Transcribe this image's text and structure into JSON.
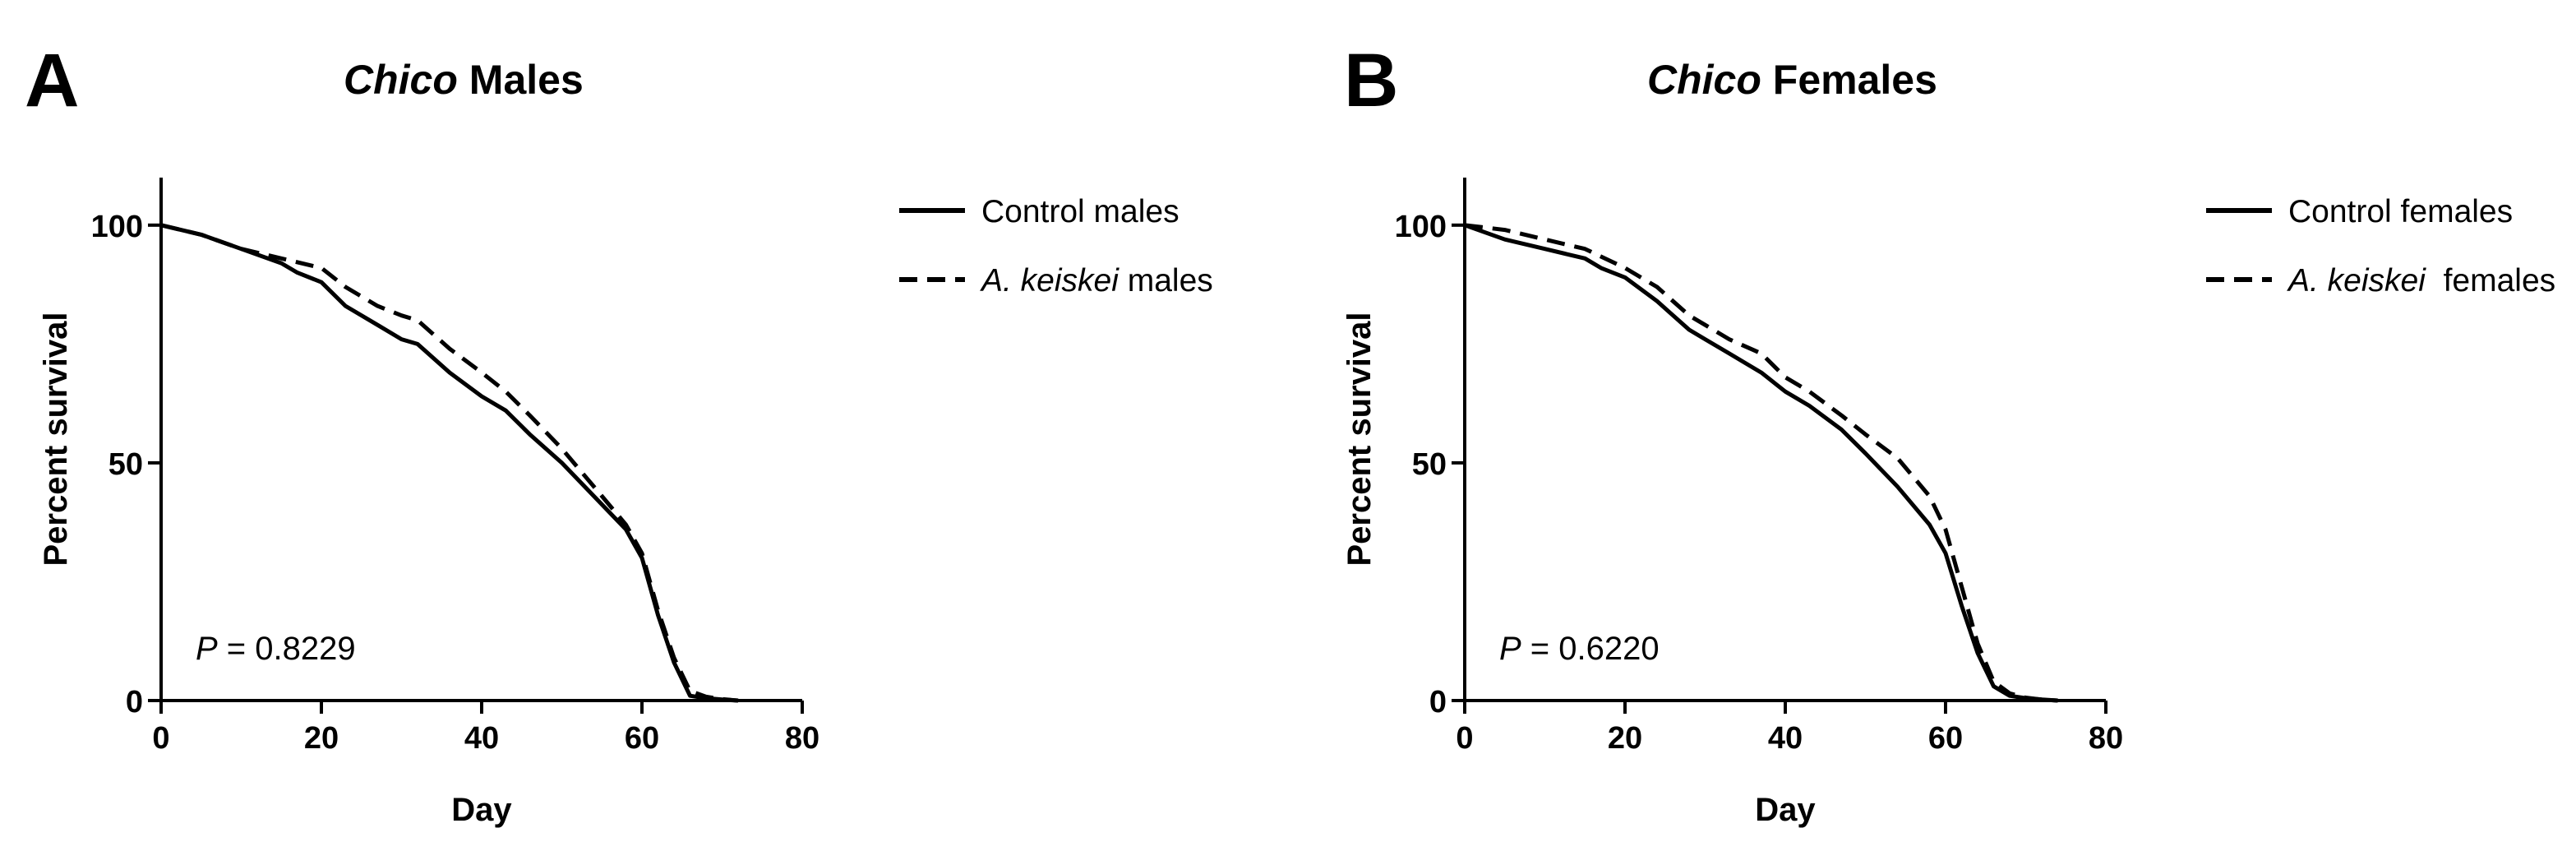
{
  "chart_data": [
    {
      "type": "line",
      "panel_label": "A",
      "title_italic": "Chico",
      "title_rest": " Males",
      "xlabel": "Day",
      "ylabel": "Percent survival",
      "xlim": [
        0,
        80
      ],
      "ylim": [
        0,
        110
      ],
      "xticks": [
        "0",
        "20",
        "40",
        "60",
        "80"
      ],
      "yticks": [
        "0",
        "50",
        "100"
      ],
      "annotation": {
        "italic": "P",
        "text": " = 0.8229"
      },
      "series": [
        {
          "name": "Control males",
          "name_italic": "",
          "name_rest": "Control males",
          "style": "solid",
          "x": [
            0,
            5,
            10,
            15,
            17,
            20,
            23,
            27,
            30,
            32,
            36,
            40,
            43,
            46,
            50,
            54,
            58,
            60,
            62,
            64,
            66,
            68,
            70,
            72
          ],
          "y": [
            100,
            98,
            95,
            92,
            90,
            88,
            83,
            79,
            76,
            75,
            69,
            64,
            61,
            56,
            50,
            43,
            36,
            30,
            18,
            8,
            1,
            0.5,
            0.2,
            0
          ]
        },
        {
          "name": "A. keiskei males",
          "name_italic": "A. keiskei",
          "name_rest": " males",
          "style": "dashed",
          "x": [
            0,
            5,
            10,
            15,
            20,
            23,
            27,
            30,
            32,
            36,
            40,
            43,
            46,
            50,
            54,
            58,
            60,
            62,
            64,
            66,
            68,
            70,
            72
          ],
          "y": [
            100,
            98,
            95,
            93,
            91,
            87,
            83,
            81,
            80,
            74,
            69,
            65,
            60,
            53,
            45,
            37,
            31,
            19,
            9,
            2,
            0.8,
            0.3,
            0
          ]
        }
      ]
    },
    {
      "type": "line",
      "panel_label": "B",
      "title_italic": "Chico",
      "title_rest": " Females",
      "xlabel": "Day",
      "ylabel": "Percent survival",
      "xlim": [
        0,
        80
      ],
      "ylim": [
        0,
        110
      ],
      "xticks": [
        "0",
        "20",
        "40",
        "60",
        "80"
      ],
      "yticks": [
        "0",
        "50",
        "100"
      ],
      "annotation": {
        "italic": "P",
        "text": " = 0.6220"
      },
      "series": [
        {
          "name": "Control females",
          "name_italic": "",
          "name_rest": "Control females",
          "style": "solid",
          "x": [
            0,
            5,
            10,
            15,
            17,
            20,
            24,
            28,
            30,
            33,
            37,
            40,
            43,
            47,
            50,
            54,
            58,
            60,
            62,
            64,
            66,
            68,
            70,
            72,
            74
          ],
          "y": [
            100,
            97,
            95,
            93,
            91,
            89,
            84,
            78,
            76,
            73,
            69,
            65,
            62,
            57,
            52,
            45,
            37,
            31,
            20,
            10,
            3,
            1,
            0.5,
            0.2,
            0
          ]
        },
        {
          "name": "A. keiskei females",
          "name_italic": "A. keiskei",
          "name_rest": "  females",
          "style": "dashed",
          "x": [
            0,
            5,
            10,
            15,
            20,
            24,
            28,
            30,
            33,
            37,
            40,
            43,
            47,
            50,
            54,
            58,
            60,
            62,
            64,
            66,
            68,
            70,
            72,
            74
          ],
          "y": [
            100,
            99,
            97,
            95,
            91,
            87,
            81,
            79,
            76,
            73,
            68,
            65,
            60,
            56,
            51,
            43,
            36,
            24,
            12,
            4,
            1.5,
            0.6,
            0.2,
            0
          ]
        }
      ]
    }
  ]
}
